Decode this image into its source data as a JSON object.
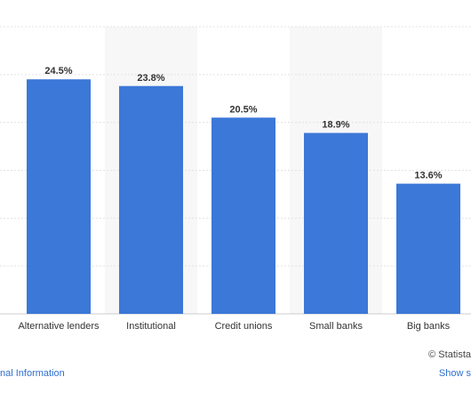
{
  "chart_data": {
    "type": "bar",
    "categories": [
      "Alternative lenders",
      "Institutional",
      "Credit unions",
      "Small banks",
      "Big banks"
    ],
    "values": [
      24.5,
      23.8,
      20.5,
      18.9,
      13.6
    ],
    "value_labels": [
      "24.5%",
      "23.8%",
      "20.5%",
      "18.9%",
      "13.6%"
    ],
    "ylim": [
      0,
      30
    ],
    "grid": true,
    "bar_color": "#3c78d8"
  },
  "footer": {
    "credit": "© Statista",
    "left_link": "nal Information",
    "right_link": "Show s"
  }
}
